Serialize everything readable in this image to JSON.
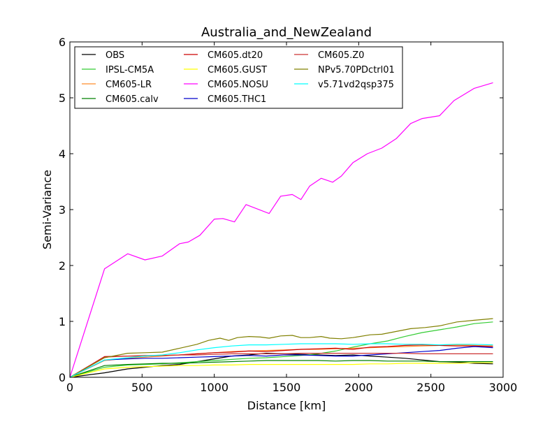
{
  "chart_data": {
    "type": "line",
    "title": "Australia_and_NewZealand",
    "xlabel": "Distance [km]",
    "ylabel": "Semi-Variance",
    "xlim": [
      0,
      3000
    ],
    "ylim": [
      0,
      6
    ],
    "xticks": [
      0,
      500,
      1000,
      1500,
      2000,
      2500,
      3000
    ],
    "yticks": [
      0,
      1,
      2,
      3,
      4,
      5,
      6
    ],
    "grid": false,
    "legend_position": "top-left",
    "legend_columns": 3,
    "series": [
      {
        "name": "OBS",
        "color": "#000000",
        "x": [
          0,
          240,
          400,
          520,
          640,
          760,
          880,
          1000,
          1120,
          1240,
          1360,
          1480,
          1600,
          1720,
          1840,
          1960,
          2080,
          2200,
          2320,
          2440,
          2560,
          2680,
          2800,
          2930
        ],
        "y": [
          0,
          0.08,
          0.15,
          0.18,
          0.21,
          0.23,
          0.28,
          0.33,
          0.38,
          0.4,
          0.43,
          0.42,
          0.41,
          0.4,
          0.39,
          0.4,
          0.38,
          0.36,
          0.34,
          0.31,
          0.28,
          0.27,
          0.25,
          0.24
        ]
      },
      {
        "name": "IPSL-CM5A",
        "color": "#33cc33",
        "x": [
          0,
          240,
          400,
          520,
          640,
          760,
          880,
          1000,
          1120,
          1240,
          1360,
          1480,
          1600,
          1720,
          1840,
          1960,
          2080,
          2200,
          2320,
          2440,
          2560,
          2680,
          2800,
          2930
        ],
        "y": [
          0,
          0.18,
          0.22,
          0.23,
          0.24,
          0.26,
          0.28,
          0.3,
          0.32,
          0.34,
          0.35,
          0.37,
          0.39,
          0.42,
          0.47,
          0.54,
          0.6,
          0.65,
          0.73,
          0.8,
          0.85,
          0.9,
          0.96,
          0.99
        ]
      },
      {
        "name": "CM605-LR",
        "color": "#ff8c2a",
        "x": [
          0,
          240,
          400,
          520,
          640,
          760,
          880,
          1000,
          1120,
          1240,
          1360,
          1480,
          1600,
          1720,
          1840,
          1960,
          2080,
          2200,
          2320,
          2440,
          2560,
          2680,
          2800,
          2930
        ],
        "y": [
          0,
          0.3,
          0.34,
          0.36,
          0.38,
          0.4,
          0.42,
          0.44,
          0.46,
          0.47,
          0.48,
          0.49,
          0.5,
          0.5,
          0.51,
          0.52,
          0.53,
          0.54,
          0.55,
          0.56,
          0.57,
          0.58,
          0.57,
          0.56
        ]
      },
      {
        "name": "CM605.calv",
        "color": "#008000",
        "x": [
          0,
          240,
          400,
          520,
          640,
          760,
          880,
          1000,
          1120,
          1240,
          1360,
          1480,
          1600,
          1720,
          1840,
          1960,
          2080,
          2200,
          2320,
          2440,
          2560,
          2680,
          2800,
          2930
        ],
        "y": [
          0,
          0.21,
          0.23,
          0.24,
          0.25,
          0.25,
          0.26,
          0.27,
          0.28,
          0.29,
          0.3,
          0.3,
          0.3,
          0.3,
          0.29,
          0.3,
          0.3,
          0.29,
          0.29,
          0.29,
          0.28,
          0.28,
          0.28,
          0.28
        ]
      },
      {
        "name": "CM605.dt20",
        "color": "#cc0000",
        "x": [
          0,
          240,
          400,
          520,
          640,
          760,
          880,
          1000,
          1120,
          1240,
          1360,
          1480,
          1600,
          1720,
          1840,
          1960,
          2080,
          2200,
          2320,
          2440,
          2560,
          2680,
          2800,
          2930
        ],
        "y": [
          0,
          0.37,
          0.38,
          0.38,
          0.39,
          0.4,
          0.42,
          0.44,
          0.45,
          0.47,
          0.46,
          0.48,
          0.5,
          0.51,
          0.52,
          0.5,
          0.54,
          0.55,
          0.57,
          0.58,
          0.57,
          0.56,
          0.56,
          0.55
        ]
      },
      {
        "name": "CM605.GUST",
        "color": "#ffff00",
        "x": [
          0,
          240,
          400,
          520,
          640,
          760,
          880,
          1000,
          1120,
          1240,
          1360,
          1480,
          1600,
          1720,
          1840,
          1960,
          2080,
          2200,
          2320,
          2440,
          2560,
          2680,
          2800,
          2930
        ],
        "y": [
          0,
          0.15,
          0.18,
          0.19,
          0.2,
          0.21,
          0.21,
          0.22,
          0.22,
          0.23,
          0.23,
          0.23,
          0.23,
          0.23,
          0.23,
          0.23,
          0.24,
          0.24,
          0.25,
          0.25,
          0.25,
          0.25,
          0.26,
          0.26
        ]
      },
      {
        "name": "CM605.NOSU",
        "color": "#ff00ff",
        "x": [
          0,
          240,
          400,
          520,
          640,
          760,
          820,
          900,
          1000,
          1060,
          1140,
          1220,
          1380,
          1460,
          1540,
          1600,
          1660,
          1740,
          1820,
          1880,
          1960,
          2060,
          2160,
          2260,
          2360,
          2440,
          2560,
          2660,
          2800,
          2930
        ],
        "y": [
          0,
          1.94,
          2.21,
          2.1,
          2.17,
          2.39,
          2.42,
          2.54,
          2.83,
          2.84,
          2.78,
          3.09,
          2.93,
          3.24,
          3.27,
          3.18,
          3.42,
          3.56,
          3.49,
          3.6,
          3.84,
          4.0,
          4.1,
          4.27,
          4.54,
          4.63,
          4.68,
          4.95,
          5.17,
          5.27
        ]
      },
      {
        "name": "CM605.THC1",
        "color": "#0000cc",
        "x": [
          0,
          240,
          400,
          520,
          640,
          760,
          880,
          1000,
          1120,
          1240,
          1360,
          1480,
          1600,
          1720,
          1840,
          1960,
          2080,
          2200,
          2320,
          2440,
          2560,
          2680,
          2800,
          2930
        ],
        "y": [
          0,
          0.31,
          0.33,
          0.34,
          0.34,
          0.35,
          0.36,
          0.37,
          0.38,
          0.39,
          0.38,
          0.4,
          0.4,
          0.39,
          0.38,
          0.38,
          0.4,
          0.42,
          0.44,
          0.46,
          0.48,
          0.52,
          0.55,
          0.53
        ]
      },
      {
        "name": "CM605.Z0",
        "color": "#cc3333",
        "x": [
          0,
          240,
          400,
          520,
          640,
          760,
          880,
          1000,
          1120,
          1240,
          1360,
          1480,
          1600,
          1720,
          1840,
          1960,
          2080,
          2200,
          2320,
          2440,
          2560,
          2680,
          2800,
          2930
        ],
        "y": [
          0,
          0.36,
          0.38,
          0.39,
          0.39,
          0.4,
          0.4,
          0.41,
          0.42,
          0.42,
          0.42,
          0.42,
          0.43,
          0.43,
          0.43,
          0.43,
          0.43,
          0.43,
          0.43,
          0.42,
          0.42,
          0.42,
          0.42,
          0.42
        ]
      },
      {
        "name": "NPv5.70PDctrl01",
        "color": "#808000",
        "x": [
          0,
          240,
          400,
          520,
          640,
          760,
          880,
          960,
          1040,
          1100,
          1160,
          1240,
          1320,
          1380,
          1460,
          1540,
          1600,
          1660,
          1740,
          1800,
          1880,
          1960,
          2080,
          2160,
          2260,
          2360,
          2460,
          2560,
          2680,
          2800,
          2930
        ],
        "y": [
          0,
          0.35,
          0.43,
          0.44,
          0.45,
          0.52,
          0.59,
          0.66,
          0.7,
          0.66,
          0.71,
          0.73,
          0.72,
          0.7,
          0.74,
          0.75,
          0.71,
          0.71,
          0.73,
          0.7,
          0.69,
          0.71,
          0.76,
          0.77,
          0.82,
          0.87,
          0.89,
          0.92,
          0.99,
          1.02,
          1.05
        ]
      },
      {
        "name": "v5.71vd2qsp375",
        "color": "#00ffff",
        "x": [
          0,
          240,
          400,
          520,
          640,
          760,
          880,
          1000,
          1120,
          1240,
          1360,
          1480,
          1600,
          1720,
          1840,
          1960,
          2080,
          2200,
          2320,
          2440,
          2560,
          2680,
          2800,
          2930
        ],
        "y": [
          0,
          0.31,
          0.35,
          0.38,
          0.4,
          0.44,
          0.49,
          0.53,
          0.56,
          0.58,
          0.58,
          0.59,
          0.6,
          0.6,
          0.6,
          0.59,
          0.6,
          0.6,
          0.59,
          0.59,
          0.58,
          0.59,
          0.59,
          0.58
        ]
      }
    ]
  }
}
